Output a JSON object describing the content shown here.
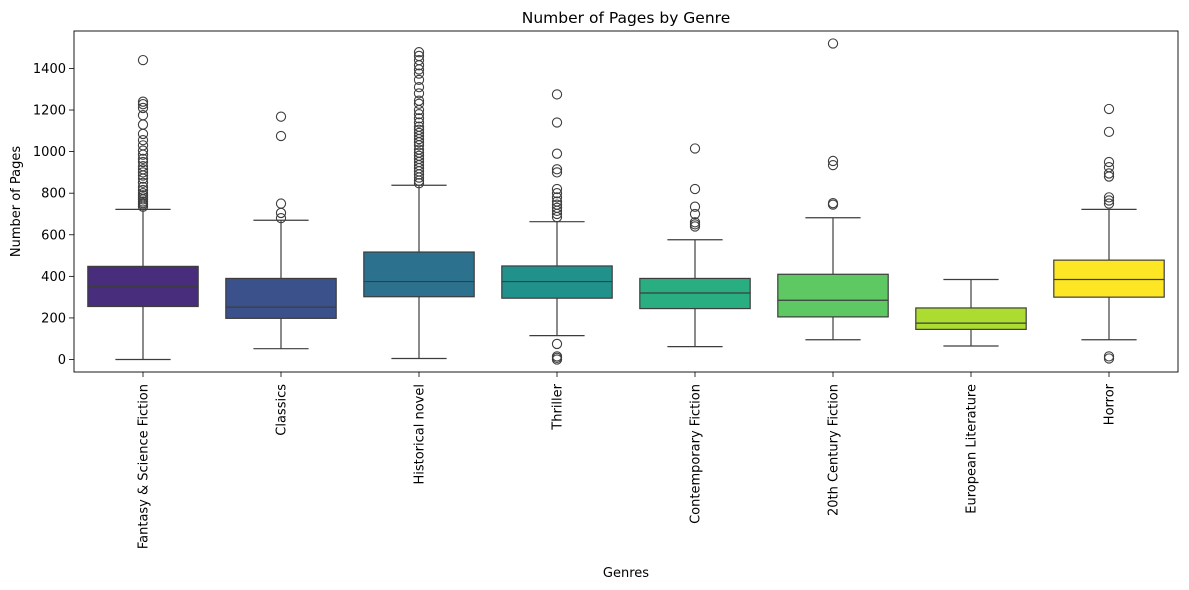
{
  "chart_data": {
    "type": "box",
    "title": "Number of Pages by Genre",
    "xlabel": "Genres",
    "ylabel": "Number of Pages",
    "ylim": [
      -60,
      1580
    ],
    "yticks": [
      0,
      200,
      400,
      600,
      800,
      1000,
      1200,
      1400
    ],
    "grid": false,
    "legend": "none",
    "boxes": [
      {
        "category": "Fantasy & Science Fiction",
        "color": "#472d7b",
        "whisker_low": 0,
        "q1": 255,
        "median": 350,
        "q3": 448,
        "whisker_high": 722,
        "outliers": [
          735,
          745,
          752,
          760,
          770,
          780,
          790,
          800,
          815,
          830,
          850,
          870,
          885,
          900,
          915,
          930,
          950,
          965,
          985,
          1005,
          1030,
          1055,
          1085,
          1130,
          1175,
          1210,
          1228,
          1240,
          1440
        ]
      },
      {
        "category": "Classics",
        "color": "#3b518b",
        "whisker_low": 52,
        "q1": 198,
        "median": 252,
        "q3": 390,
        "whisker_high": 670,
        "outliers": [
          680,
          705,
          750,
          1075,
          1168
        ]
      },
      {
        "category": "Historical novel",
        "color": "#2c728e",
        "whisker_low": 5,
        "q1": 302,
        "median": 375,
        "q3": 517,
        "whisker_high": 838,
        "outliers": [
          848,
          860,
          875,
          890,
          905,
          920,
          935,
          950,
          965,
          980,
          995,
          1010,
          1030,
          1045,
          1060,
          1075,
          1090,
          1105,
          1120,
          1140,
          1160,
          1180,
          1200,
          1230,
          1245,
          1280,
          1310,
          1345,
          1375,
          1395,
          1415,
          1440,
          1460,
          1478
        ]
      },
      {
        "category": "Thriller",
        "color": "#21918c",
        "whisker_low": 115,
        "q1": 295,
        "median": 375,
        "q3": 450,
        "whisker_high": 663,
        "outliers": [
          0,
          8,
          15,
          75,
          685,
          700,
          715,
          730,
          745,
          760,
          780,
          800,
          820,
          900,
          915,
          990,
          1140,
          1275
        ]
      },
      {
        "category": "Contemporary Fiction",
        "color": "#28ae80",
        "whisker_low": 62,
        "q1": 245,
        "median": 320,
        "q3": 390,
        "whisker_high": 576,
        "outliers": [
          640,
          650,
          660,
          700,
          735,
          820,
          1015
        ]
      },
      {
        "category": "20th Century Fiction",
        "color": "#5ec962",
        "whisker_low": 95,
        "q1": 205,
        "median": 285,
        "q3": 410,
        "whisker_high": 682,
        "outliers": [
          745,
          752,
          935,
          955,
          1520
        ]
      },
      {
        "category": "European Literature",
        "color": "#addc30",
        "whisker_low": 65,
        "q1": 145,
        "median": 175,
        "q3": 248,
        "whisker_high": 385,
        "outliers": []
      },
      {
        "category": "Horror",
        "color": "#fde725",
        "whisker_low": 95,
        "q1": 300,
        "median": 385,
        "q3": 478,
        "whisker_high": 722,
        "outliers": [
          5,
          15,
          750,
          765,
          780,
          880,
          895,
          925,
          950,
          1095,
          1205
        ]
      }
    ]
  }
}
